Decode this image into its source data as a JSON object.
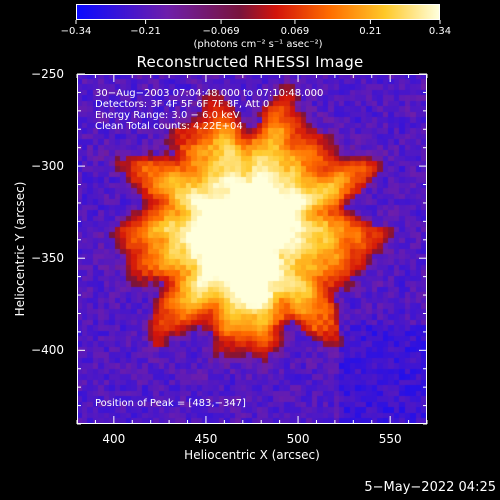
{
  "colorbar": {
    "tick_labels": [
      "−0.34",
      "−0.21",
      "−0.069",
      "0.069",
      "0.21",
      "0.34"
    ],
    "tick_values": [
      -0.34,
      -0.21,
      -0.069,
      0.069,
      0.21,
      0.34
    ],
    "range": [
      -0.34,
      0.34
    ],
    "units_label": "(photons cm⁻² s⁻¹ asec⁻²)"
  },
  "title": "Reconstructed RHESSI Image",
  "annotations": {
    "time_range": "30−Aug−2003 07:04:48.000 to 07:10:48.000",
    "detectors": "Detectors: 3F 4F 5F 6F 7F 8F, Att 0",
    "energy": "Energy Range: 3.0 − 6.0 keV",
    "clean": "Clean     Total counts: 4.22E+04",
    "peak": "Position of Peak = [483,−347]"
  },
  "axes": {
    "xlabel": "Heliocentric X (arcsec)",
    "ylabel": "Heliocentric Y (arcsec)",
    "xlim": [
      380,
      570
    ],
    "ylim": [
      -440,
      -250
    ],
    "x_ticks": [
      400,
      450,
      500,
      550
    ],
    "x_tick_labels": [
      "400",
      "450",
      "500",
      "550"
    ],
    "y_ticks": [
      -250,
      -300,
      -350,
      -400
    ],
    "y_tick_labels": [
      "−250",
      "−300",
      "−350",
      "−400"
    ]
  },
  "chart_data": {
    "type": "heatmap",
    "title": "Reconstructed RHESSI Image",
    "xlabel": "Heliocentric X (arcsec)",
    "ylabel": "Heliocentric Y (arcsec)",
    "xlim": [
      380,
      570
    ],
    "ylim": [
      -440,
      -250
    ],
    "peak": [
      483,
      -347
    ],
    "colormap": "rhessi-rainbow",
    "colorbar_range": [
      -0.34,
      0.34
    ],
    "colors": {
      "low": "#1a1aff",
      "mid_low": "#6a20b0",
      "mid": "#d01010",
      "mid_high": "#ff8000",
      "high": "#fff8c0"
    }
  },
  "footer": {
    "timestamp": "5−May−2022 04:25"
  }
}
